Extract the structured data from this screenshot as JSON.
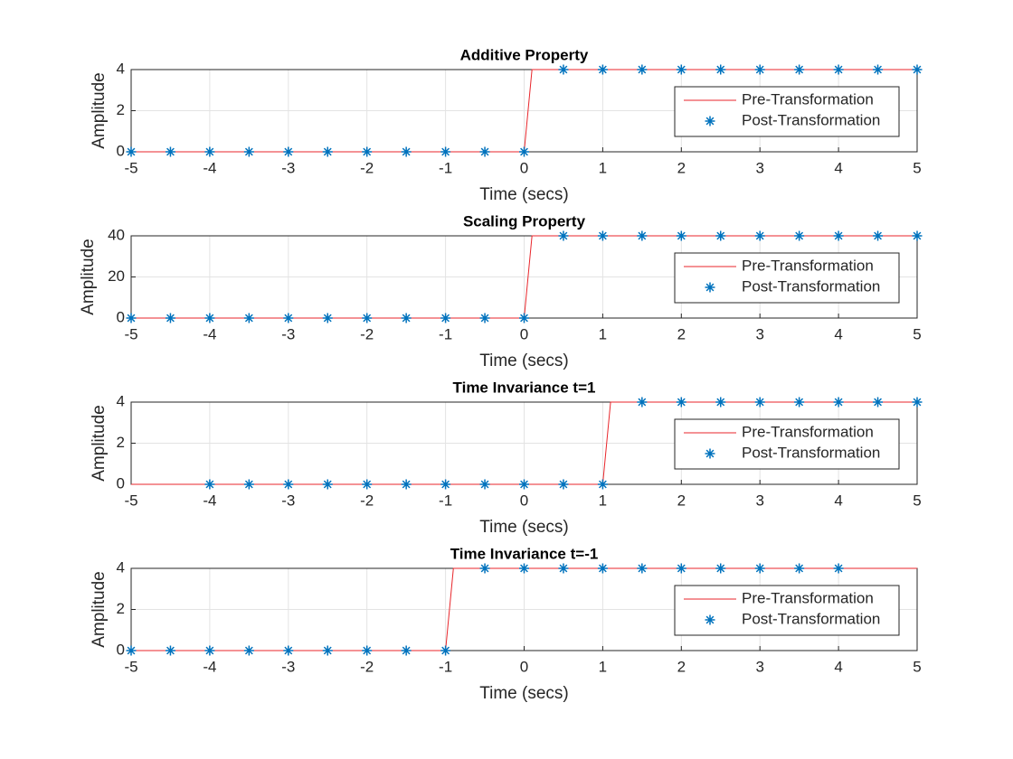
{
  "chart_data": [
    {
      "type": "line",
      "title": "Additive Property",
      "xlabel": "Time (secs)",
      "ylabel": "Amplitude",
      "xlim": [
        -5,
        5
      ],
      "xticks": [
        -5,
        -4,
        -3,
        -2,
        -1,
        0,
        1,
        2,
        3,
        4,
        5
      ],
      "ylim": [
        0,
        4
      ],
      "yticks": [
        0,
        2,
        4
      ],
      "grid": true,
      "legend": "east",
      "series": [
        {
          "name": "Pre-Transformation",
          "color": "#e8262b",
          "style": "line",
          "x": [
            -5,
            0,
            0.1,
            5
          ],
          "values": [
            0,
            0,
            4,
            4
          ]
        },
        {
          "name": "Post-Transformation",
          "color": "#0072bd",
          "style": "asterisk",
          "x": [
            -5,
            -4.5,
            -4,
            -3.5,
            -3,
            -2.5,
            -2,
            -1.5,
            -1,
            -0.5,
            0,
            0.5,
            1,
            1.5,
            2,
            2.5,
            3,
            3.5,
            4,
            4.5,
            5
          ],
          "values": [
            0,
            0,
            0,
            0,
            0,
            0,
            0,
            0,
            0,
            0,
            0,
            4,
            4,
            4,
            4,
            4,
            4,
            4,
            4,
            4,
            4
          ]
        }
      ]
    },
    {
      "type": "line",
      "title": "Scaling Property",
      "xlabel": "Time (secs)",
      "ylabel": "Amplitude",
      "xlim": [
        -5,
        5
      ],
      "xticks": [
        -5,
        -4,
        -3,
        -2,
        -1,
        0,
        1,
        2,
        3,
        4,
        5
      ],
      "ylim": [
        0,
        40
      ],
      "yticks": [
        0,
        20,
        40
      ],
      "grid": true,
      "legend": "east",
      "series": [
        {
          "name": "Pre-Transformation",
          "color": "#e8262b",
          "style": "line",
          "x": [
            -5,
            0,
            0.1,
            5
          ],
          "values": [
            0,
            0,
            40,
            40
          ]
        },
        {
          "name": "Post-Transformation",
          "color": "#0072bd",
          "style": "asterisk",
          "x": [
            -5,
            -4.5,
            -4,
            -3.5,
            -3,
            -2.5,
            -2,
            -1.5,
            -1,
            -0.5,
            0,
            0.5,
            1,
            1.5,
            2,
            2.5,
            3,
            3.5,
            4,
            4.5,
            5
          ],
          "values": [
            0,
            0,
            0,
            0,
            0,
            0,
            0,
            0,
            0,
            0,
            0,
            40,
            40,
            40,
            40,
            40,
            40,
            40,
            40,
            40,
            40
          ]
        }
      ]
    },
    {
      "type": "line",
      "title": "Time Invariance t=1",
      "xlabel": "Time (secs)",
      "ylabel": "Amplitude",
      "xlim": [
        -5,
        5
      ],
      "xticks": [
        -5,
        -4,
        -3,
        -2,
        -1,
        0,
        1,
        2,
        3,
        4,
        5
      ],
      "ylim": [
        0,
        4
      ],
      "yticks": [
        0,
        2,
        4
      ],
      "grid": true,
      "legend": "east",
      "series": [
        {
          "name": "Pre-Transformation",
          "color": "#e8262b",
          "style": "line",
          "x": [
            -5,
            1,
            1.1,
            5
          ],
          "values": [
            0,
            0,
            4,
            4
          ]
        },
        {
          "name": "Post-Transformation",
          "color": "#0072bd",
          "style": "asterisk",
          "x": [
            -4,
            -3.5,
            -3,
            -2.5,
            -2,
            -1.5,
            -1,
            -0.5,
            0,
            0.5,
            1,
            1.5,
            2,
            2.5,
            3,
            3.5,
            4,
            4.5,
            5
          ],
          "values": [
            0,
            0,
            0,
            0,
            0,
            0,
            0,
            0,
            0,
            0,
            0,
            4,
            4,
            4,
            4,
            4,
            4,
            4,
            4
          ]
        }
      ]
    },
    {
      "type": "line",
      "title": "Time Invariance t=-1",
      "xlabel": "Time (secs)",
      "ylabel": "Amplitude",
      "xlim": [
        -5,
        5
      ],
      "xticks": [
        -5,
        -4,
        -3,
        -2,
        -1,
        0,
        1,
        2,
        3,
        4,
        5
      ],
      "ylim": [
        0,
        4
      ],
      "yticks": [
        0,
        2,
        4
      ],
      "grid": true,
      "legend": "east",
      "series": [
        {
          "name": "Pre-Transformation",
          "color": "#e8262b",
          "style": "line",
          "x": [
            -5,
            -1,
            -0.9,
            5
          ],
          "values": [
            0,
            0,
            4,
            4
          ]
        },
        {
          "name": "Post-Transformation",
          "color": "#0072bd",
          "style": "asterisk",
          "x": [
            -5,
            -4.5,
            -4,
            -3.5,
            -3,
            -2.5,
            -2,
            -1.5,
            -1,
            -0.5,
            0,
            0.5,
            1,
            1.5,
            2,
            2.5,
            3,
            3.5,
            4
          ],
          "values": [
            0,
            0,
            0,
            0,
            0,
            0,
            0,
            0,
            0,
            4,
            4,
            4,
            4,
            4,
            4,
            4,
            4,
            4,
            4
          ]
        }
      ]
    }
  ]
}
